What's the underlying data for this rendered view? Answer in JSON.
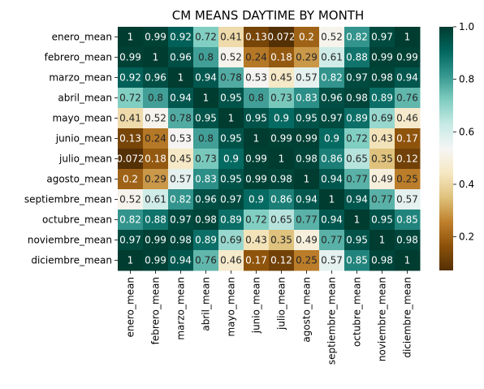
{
  "chart_data": {
    "type": "heatmap",
    "title": "CM MEANS DAYTIME BY MONTH",
    "row_labels": [
      "enero_mean",
      "febrero_mean",
      "marzo_mean",
      "abril_mean",
      "mayo_mean",
      "junio_mean",
      "julio_mean",
      "agosto_mean",
      "septiembre_mean",
      "octubre_mean",
      "noviembre_mean",
      "diciembre_mean"
    ],
    "col_labels": [
      "enero_mean",
      "febrero_mean",
      "marzo_mean",
      "abril_mean",
      "mayo_mean",
      "junio_mean",
      "julio_mean",
      "agosto_mean",
      "septiembre_mean",
      "octubre_mean",
      "noviembre_mean",
      "diciembre_mean"
    ],
    "values": [
      [
        1,
        0.99,
        0.92,
        0.72,
        0.41,
        0.13,
        0.072,
        0.2,
        0.52,
        0.82,
        0.97,
        1
      ],
      [
        0.99,
        1,
        0.96,
        0.8,
        0.52,
        0.24,
        0.18,
        0.29,
        0.61,
        0.88,
        0.99,
        0.99
      ],
      [
        0.92,
        0.96,
        1,
        0.94,
        0.78,
        0.53,
        0.45,
        0.57,
        0.82,
        0.97,
        0.98,
        0.94
      ],
      [
        0.72,
        0.8,
        0.94,
        1,
        0.95,
        0.8,
        0.73,
        0.83,
        0.96,
        0.98,
        0.89,
        0.76
      ],
      [
        0.41,
        0.52,
        0.78,
        0.95,
        1,
        0.95,
        0.9,
        0.95,
        0.97,
        0.89,
        0.69,
        0.46
      ],
      [
        0.13,
        0.24,
        0.53,
        0.8,
        0.95,
        1,
        0.99,
        0.99,
        0.9,
        0.72,
        0.43,
        0.17
      ],
      [
        0.072,
        0.18,
        0.45,
        0.73,
        0.9,
        0.99,
        1,
        0.98,
        0.86,
        0.65,
        0.35,
        0.12
      ],
      [
        0.2,
        0.29,
        0.57,
        0.83,
        0.95,
        0.99,
        0.98,
        1,
        0.94,
        0.77,
        0.49,
        0.25
      ],
      [
        0.52,
        0.61,
        0.82,
        0.96,
        0.97,
        0.9,
        0.86,
        0.94,
        1,
        0.94,
        0.77,
        0.57
      ],
      [
        0.82,
        0.88,
        0.97,
        0.98,
        0.89,
        0.72,
        0.65,
        0.77,
        0.94,
        1,
        0.95,
        0.85
      ],
      [
        0.97,
        0.99,
        0.98,
        0.89,
        0.69,
        0.43,
        0.35,
        0.49,
        0.77,
        0.95,
        1,
        0.98
      ],
      [
        1,
        0.99,
        0.94,
        0.76,
        0.46,
        0.17,
        0.12,
        0.25,
        0.57,
        0.85,
        0.98,
        1
      ]
    ],
    "colormap": "BrBG",
    "colorbar": {
      "min": 0.072,
      "max": 1,
      "ticks": [
        0.2,
        0.4,
        0.6,
        0.8,
        1.0
      ],
      "tick_labels": [
        "0.2",
        "0.4",
        "0.6",
        "0.8",
        "1.0"
      ]
    },
    "annotations": true
  }
}
